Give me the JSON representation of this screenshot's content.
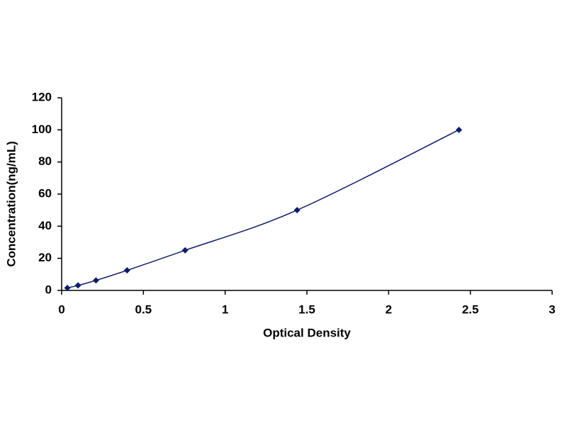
{
  "chart_data": {
    "type": "scatter",
    "smooth": true,
    "x_label": "Optical Density",
    "y_label": "Concentration(ng/mL)",
    "series": [
      {
        "color": "#0d1a6e",
        "x": [
          0.035,
          0.1,
          0.21,
          0.4,
          0.755,
          1.44,
          2.43
        ],
        "values": [
          1.56,
          3.12,
          6.25,
          12.5,
          25,
          50,
          100
        ]
      }
    ],
    "xlim": [
      0,
      3
    ],
    "xticks": [
      0,
      0.5,
      1,
      1.5,
      2,
      2.5,
      3
    ],
    "ylim": [
      0,
      120
    ],
    "yticks": [
      0,
      20,
      40,
      60,
      80,
      100,
      120
    ],
    "grid": false
  }
}
